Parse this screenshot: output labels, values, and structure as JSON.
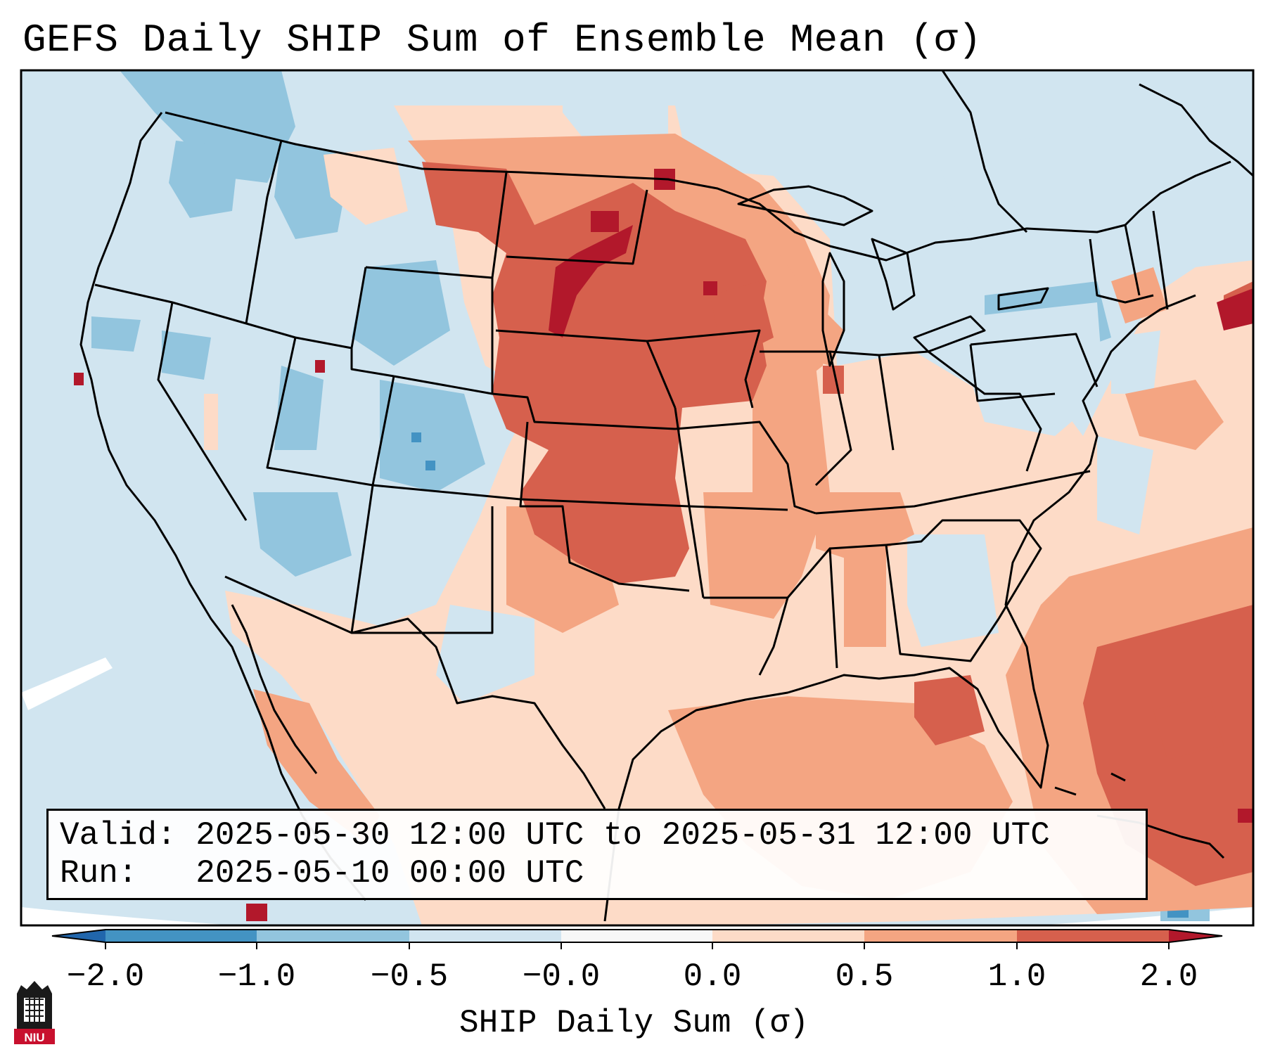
{
  "title": "GEFS Daily SHIP Sum of Ensemble Mean (σ)",
  "info": {
    "valid_label": "Valid:",
    "valid_value": "2025-05-30 12:00 UTC to 2025-05-31 12:00 UTC",
    "run_label": "Run:",
    "run_value": "2025-05-10 00:00 UTC"
  },
  "colorbar": {
    "label": "SHIP Daily Sum (σ)",
    "ticks": [
      "−2.0",
      "−1.0",
      "−0.5",
      "−0.0",
      "0.0",
      "0.5",
      "1.0",
      "2.0"
    ],
    "bins": [
      {
        "from": -2.0,
        "to": -1.0,
        "color": "#4393c3"
      },
      {
        "from": -1.0,
        "to": -0.5,
        "color": "#92c5de"
      },
      {
        "from": -0.5,
        "to": -0.0,
        "color": "#d1e5f0"
      },
      {
        "from": 0.0,
        "to": 0.0,
        "color": "#f7f7f7"
      },
      {
        "from": 0.0,
        "to": 0.5,
        "color": "#fddbc7"
      },
      {
        "from": 0.5,
        "to": 1.0,
        "color": "#f4a582"
      },
      {
        "from": 1.0,
        "to": 2.0,
        "color": "#d6604d"
      }
    ],
    "under_color": "#2166ac",
    "over_color": "#b2182b"
  },
  "logo": {
    "text": "NIU"
  },
  "colors": {
    "strong_pos": "#b2182b",
    "pos": "#d6604d",
    "mild_pos": "#f4a582",
    "weak_pos": "#fddbc7",
    "weak_neg": "#d1e5f0",
    "mild_neg": "#92c5de",
    "neg": "#4393c3",
    "strong_neg": "#2166ac",
    "neutral": "#f7f7f7"
  }
}
